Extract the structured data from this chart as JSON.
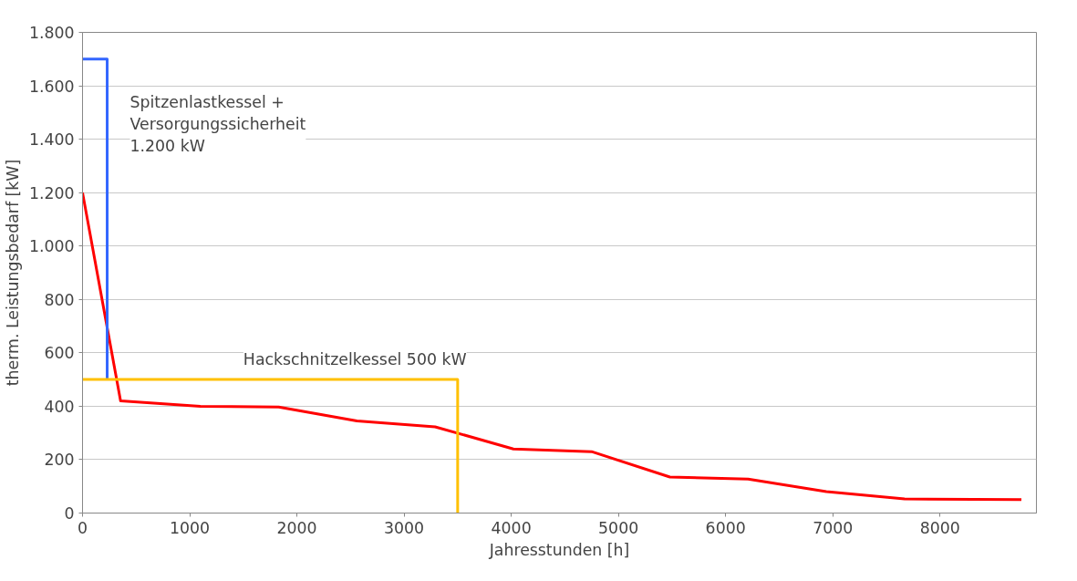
{
  "chart_data": {
    "type": "line",
    "xlabel": "Jahresstunden [h]",
    "ylabel": "therm. Leistungsbedarf [kW]",
    "xlim": [
      0,
      8900
    ],
    "ylim": [
      0,
      1800
    ],
    "xticks": [
      0,
      1000,
      2000,
      3000,
      4000,
      5000,
      6000,
      7000,
      8000
    ],
    "yticks": [
      0,
      {
        "value": 200,
        "label": "200"
      },
      {
        "value": 400,
        "label": "400"
      },
      {
        "value": 600,
        "label": "600"
      },
      {
        "value": 800,
        "label": "800"
      },
      {
        "value": 1000,
        "label": "1.000"
      },
      {
        "value": 1200,
        "label": "1.200"
      },
      {
        "value": 1400,
        "label": "1.400"
      },
      {
        "value": 1600,
        "label": "1.600"
      },
      {
        "value": 1800,
        "label": "1.800"
      }
    ],
    "grid": "y",
    "marker": "none",
    "line_style": "solid",
    "series": [
      {
        "color": "#ff0000",
        "x": [
          0,
          355,
          1100,
          1830,
          2560,
          3290,
          4020,
          4750,
          5480,
          6210,
          6940,
          7670,
          8760
        ],
        "values": [
          1200,
          420,
          400,
          397,
          345,
          323,
          240,
          230,
          135,
          127,
          80,
          53,
          50
        ]
      },
      {
        "color": "#3366ff",
        "x": [
          0,
          230,
          230
        ],
        "values": [
          1700,
          1700,
          500
        ]
      },
      {
        "color": "#ffc000",
        "x": [
          0,
          3500,
          3500
        ],
        "values": [
          500,
          500,
          0
        ]
      }
    ],
    "annotations": [
      {
        "text": "Spitzenlastkessel +\nVersorgungssicherheit\n 1.200 kW",
        "x": 230,
        "y": 1700
      },
      {
        "text": "Hackschnitzelkessel 500 kW",
        "x": 3500,
        "y": 500
      }
    ]
  }
}
